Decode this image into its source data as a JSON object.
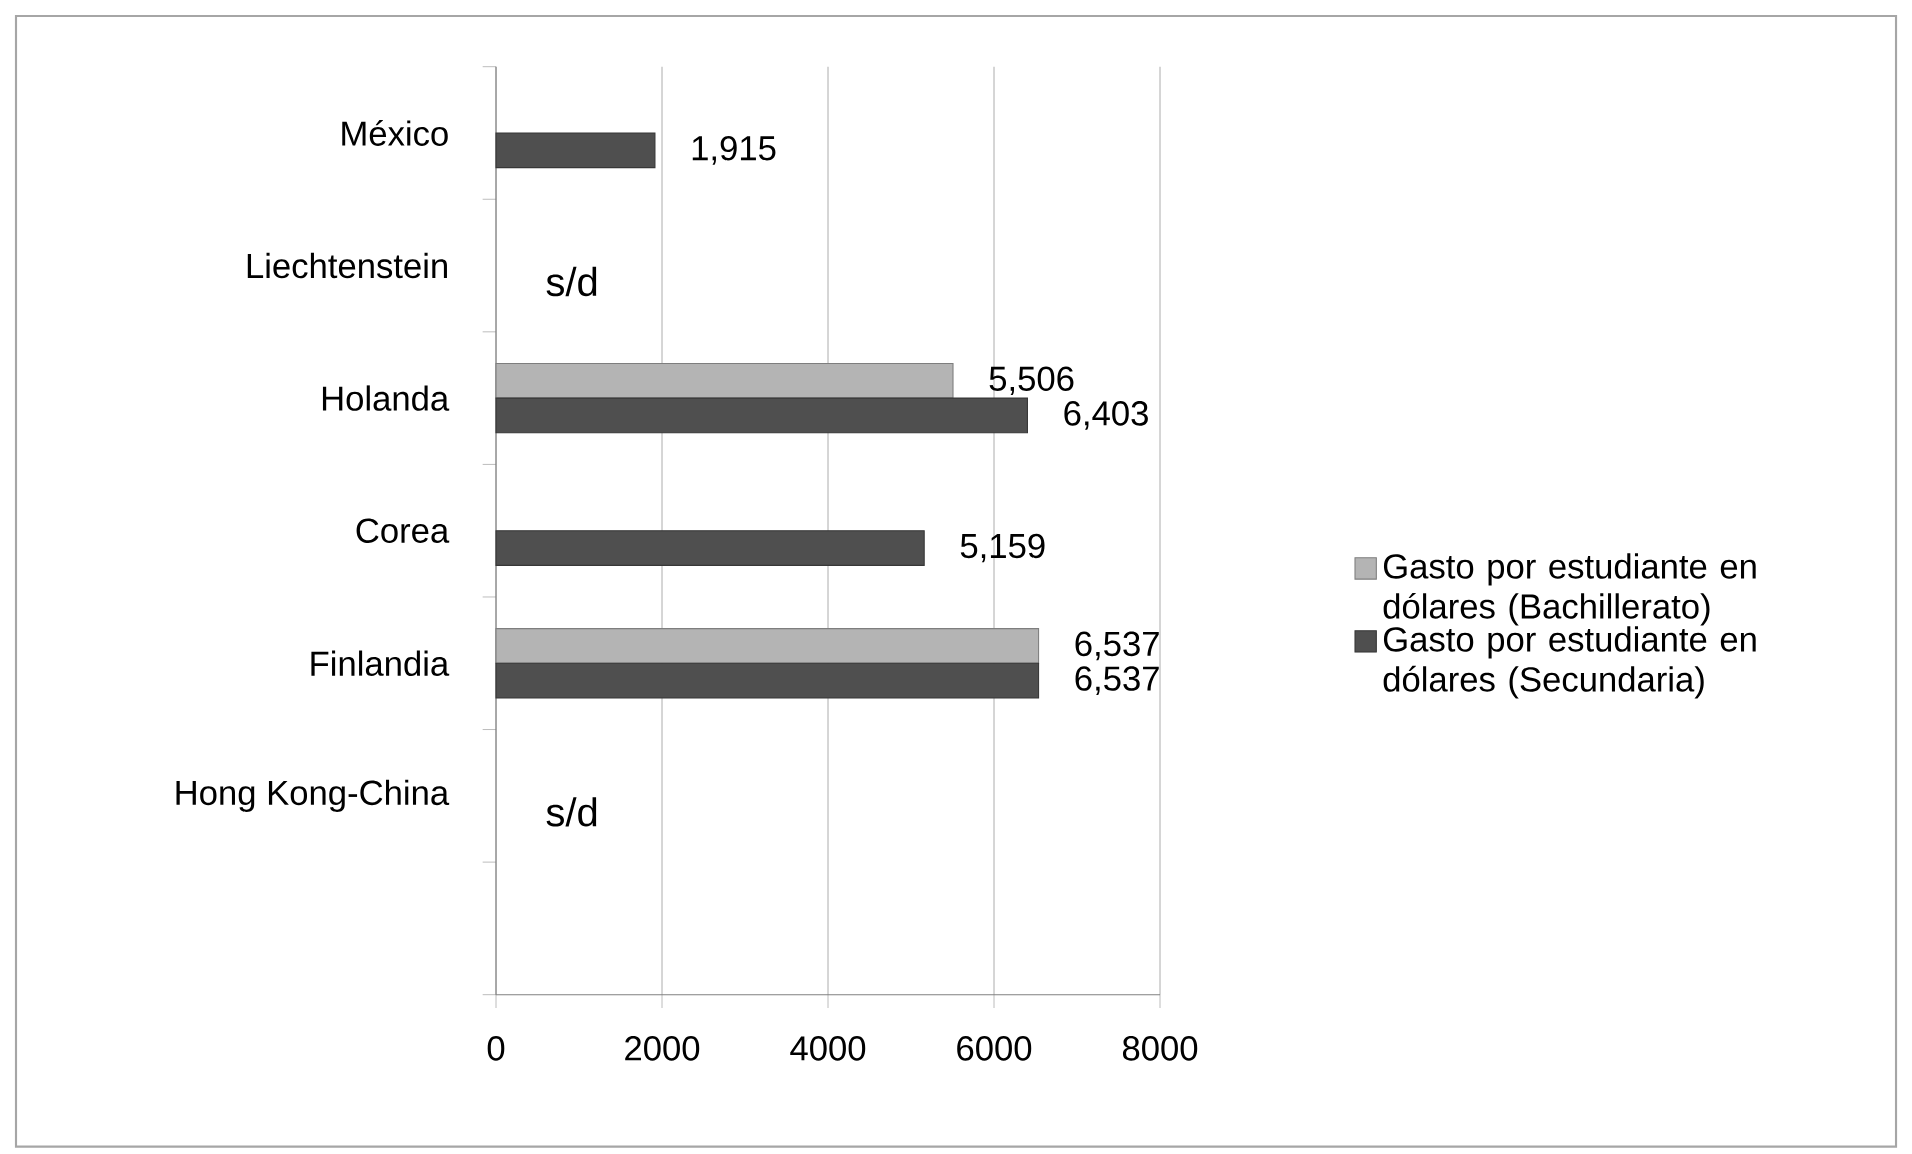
{
  "chart_data": {
    "type": "bar",
    "orientation": "horizontal",
    "categories": [
      "México",
      "Liechtenstein",
      "Holanda",
      "Corea",
      "Finlandia",
      "Hong Kong-China",
      null
    ],
    "series": [
      {
        "name": "Gasto por estudiante en dólares (Bachillerato)",
        "color": "#b4b4b4",
        "values": [
          null,
          null,
          5506,
          null,
          6537,
          null,
          null
        ],
        "value_labels": [
          null,
          null,
          "5,506",
          null,
          "6,537",
          null,
          null
        ]
      },
      {
        "name": "Gasto por estudiante en dólares (Secundaria)",
        "color": "#4f4f4f",
        "values": [
          1915,
          null,
          6403,
          5159,
          6537,
          null,
          null
        ],
        "value_labels": [
          "1,915",
          null,
          "6,403",
          "5,159",
          "6,537",
          null,
          null
        ]
      }
    ],
    "xlim": [
      0,
      8000
    ],
    "xticks": [
      0,
      2000,
      4000,
      6000,
      8000
    ],
    "grid": "x",
    "legend": "right",
    "annotations": [
      "s/d",
      "s/d"
    ]
  }
}
